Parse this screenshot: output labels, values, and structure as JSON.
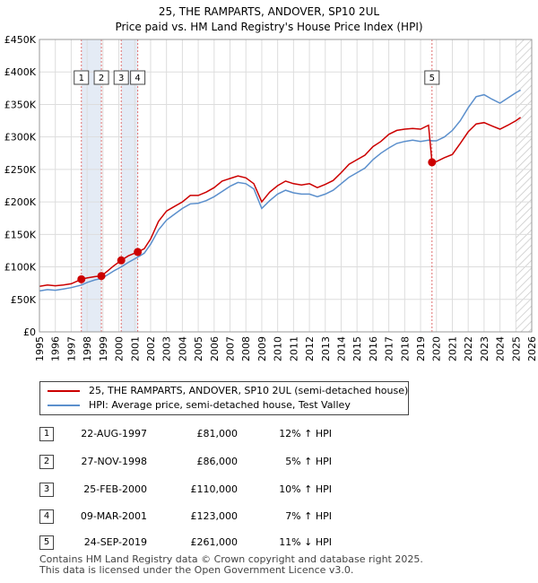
{
  "chart_data": {
    "type": "line",
    "title": "25, THE RAMPARTS, ANDOVER, SP10 2UL",
    "subtitle": "Price paid vs. HM Land Registry's House Price Index (HPI)",
    "xlim": [
      1995,
      2026
    ],
    "ylim": [
      0,
      450000
    ],
    "x_ticks": [
      "1995",
      "1996",
      "1997",
      "1998",
      "1999",
      "2000",
      "2001",
      "2002",
      "2003",
      "2004",
      "2005",
      "2006",
      "2007",
      "2008",
      "2009",
      "2010",
      "2011",
      "2012",
      "2013",
      "2014",
      "2015",
      "2016",
      "2017",
      "2018",
      "2019",
      "2020",
      "2021",
      "2022",
      "2023",
      "2024",
      "2025",
      "2026"
    ],
    "y_ticks": [
      {
        "value": 0,
        "label": "£0"
      },
      {
        "value": 50000,
        "label": "£50K"
      },
      {
        "value": 100000,
        "label": "£100K"
      },
      {
        "value": 150000,
        "label": "£150K"
      },
      {
        "value": 200000,
        "label": "£200K"
      },
      {
        "value": 250000,
        "label": "£250K"
      },
      {
        "value": 300000,
        "label": "£300K"
      },
      {
        "value": 350000,
        "label": "£350K"
      },
      {
        "value": 400000,
        "label": "£400K"
      },
      {
        "value": 450000,
        "label": "£450K"
      }
    ],
    "grid": true,
    "hatch_start": 2025.0,
    "series": [
      {
        "name": "25, THE RAMPARTS, ANDOVER, SP10 2UL (semi-detached house)",
        "color": "#cc0000",
        "points": [
          [
            1995.0,
            70000
          ],
          [
            1995.5,
            72000
          ],
          [
            1996.0,
            71000
          ],
          [
            1996.5,
            72000
          ],
          [
            1997.0,
            74000
          ],
          [
            1997.64,
            81000
          ],
          [
            1998.0,
            83000
          ],
          [
            1998.5,
            85000
          ],
          [
            1998.9,
            86000
          ],
          [
            1999.3,
            94000
          ],
          [
            1999.7,
            102000
          ],
          [
            2000.15,
            110000
          ],
          [
            2000.6,
            117000
          ],
          [
            2001.19,
            123000
          ],
          [
            2001.6,
            128000
          ],
          [
            2002.0,
            143000
          ],
          [
            2002.5,
            170000
          ],
          [
            2003.0,
            186000
          ],
          [
            2003.5,
            193000
          ],
          [
            2004.0,
            200000
          ],
          [
            2004.5,
            210000
          ],
          [
            2005.0,
            210000
          ],
          [
            2005.5,
            215000
          ],
          [
            2006.0,
            222000
          ],
          [
            2006.5,
            232000
          ],
          [
            2007.0,
            236000
          ],
          [
            2007.5,
            240000
          ],
          [
            2008.0,
            237000
          ],
          [
            2008.5,
            228000
          ],
          [
            2009.0,
            200000
          ],
          [
            2009.5,
            215000
          ],
          [
            2010.0,
            225000
          ],
          [
            2010.5,
            232000
          ],
          [
            2011.0,
            228000
          ],
          [
            2011.5,
            226000
          ],
          [
            2012.0,
            228000
          ],
          [
            2012.5,
            222000
          ],
          [
            2013.0,
            227000
          ],
          [
            2013.5,
            233000
          ],
          [
            2014.0,
            245000
          ],
          [
            2014.5,
            258000
          ],
          [
            2015.0,
            265000
          ],
          [
            2015.5,
            272000
          ],
          [
            2016.0,
            285000
          ],
          [
            2016.5,
            293000
          ],
          [
            2017.0,
            304000
          ],
          [
            2017.5,
            310000
          ],
          [
            2018.0,
            312000
          ],
          [
            2018.5,
            313000
          ],
          [
            2019.0,
            312000
          ],
          [
            2019.5,
            318000
          ],
          [
            2019.72,
            261000
          ],
          [
            2020.0,
            262000
          ],
          [
            2020.5,
            268000
          ],
          [
            2021.0,
            273000
          ],
          [
            2021.5,
            290000
          ],
          [
            2022.0,
            308000
          ],
          [
            2022.5,
            320000
          ],
          [
            2023.0,
            322000
          ],
          [
            2023.5,
            317000
          ],
          [
            2024.0,
            312000
          ],
          [
            2024.5,
            318000
          ],
          [
            2025.0,
            325000
          ],
          [
            2025.3,
            330000
          ]
        ]
      },
      {
        "name": "HPI: Average price, semi-detached house, Test Valley",
        "color": "#5b8fcc",
        "points": [
          [
            1995.0,
            63000
          ],
          [
            1995.5,
            65000
          ],
          [
            1996.0,
            64000
          ],
          [
            1996.5,
            66000
          ],
          [
            1997.0,
            68000
          ],
          [
            1997.64,
            72000
          ],
          [
            1998.0,
            76000
          ],
          [
            1998.5,
            80000
          ],
          [
            1998.9,
            82000
          ],
          [
            1999.3,
            88000
          ],
          [
            1999.7,
            94000
          ],
          [
            2000.15,
            100000
          ],
          [
            2000.6,
            107000
          ],
          [
            2001.19,
            115000
          ],
          [
            2001.6,
            121000
          ],
          [
            2002.0,
            135000
          ],
          [
            2002.5,
            157000
          ],
          [
            2003.0,
            172000
          ],
          [
            2003.5,
            181000
          ],
          [
            2004.0,
            190000
          ],
          [
            2004.5,
            197000
          ],
          [
            2005.0,
            198000
          ],
          [
            2005.5,
            202000
          ],
          [
            2006.0,
            208000
          ],
          [
            2006.5,
            216000
          ],
          [
            2007.0,
            224000
          ],
          [
            2007.5,
            230000
          ],
          [
            2008.0,
            228000
          ],
          [
            2008.5,
            220000
          ],
          [
            2009.0,
            190000
          ],
          [
            2009.5,
            202000
          ],
          [
            2010.0,
            212000
          ],
          [
            2010.5,
            218000
          ],
          [
            2011.0,
            214000
          ],
          [
            2011.5,
            212000
          ],
          [
            2012.0,
            212000
          ],
          [
            2012.5,
            208000
          ],
          [
            2013.0,
            212000
          ],
          [
            2013.5,
            218000
          ],
          [
            2014.0,
            228000
          ],
          [
            2014.5,
            238000
          ],
          [
            2015.0,
            245000
          ],
          [
            2015.5,
            252000
          ],
          [
            2016.0,
            265000
          ],
          [
            2016.5,
            275000
          ],
          [
            2017.0,
            283000
          ],
          [
            2017.5,
            290000
          ],
          [
            2018.0,
            293000
          ],
          [
            2018.5,
            295000
          ],
          [
            2019.0,
            293000
          ],
          [
            2019.5,
            295000
          ],
          [
            2019.72,
            294000
          ],
          [
            2020.0,
            294000
          ],
          [
            2020.5,
            300000
          ],
          [
            2021.0,
            310000
          ],
          [
            2021.5,
            325000
          ],
          [
            2022.0,
            345000
          ],
          [
            2022.5,
            362000
          ],
          [
            2023.0,
            365000
          ],
          [
            2023.5,
            358000
          ],
          [
            2024.0,
            352000
          ],
          [
            2024.5,
            360000
          ],
          [
            2025.0,
            368000
          ],
          [
            2025.3,
            372000
          ]
        ]
      }
    ],
    "sales": [
      {
        "num": "1",
        "x": 1997.64,
        "value": 81000
      },
      {
        "num": "2",
        "x": 1998.9,
        "value": 86000
      },
      {
        "num": "3",
        "x": 2000.15,
        "value": 110000
      },
      {
        "num": "4",
        "x": 2001.19,
        "value": 123000
      },
      {
        "num": "5",
        "x": 2019.72,
        "value": 261000
      }
    ],
    "shaded_spans": [
      [
        1997.64,
        1998.9
      ],
      [
        2000.15,
        2001.19
      ]
    ]
  },
  "legend": {
    "property_label": "25, THE RAMPARTS, ANDOVER, SP10 2UL (semi-detached house)",
    "hpi_label": "HPI: Average price, semi-detached house, Test Valley",
    "property_color": "#cc0000",
    "hpi_color": "#5b8fcc"
  },
  "transactions": [
    {
      "num": "1",
      "date": "22-AUG-1997",
      "price": "£81,000",
      "hpi": "12% ↑ HPI"
    },
    {
      "num": "2",
      "date": "27-NOV-1998",
      "price": "£86,000",
      "hpi": "5% ↑ HPI"
    },
    {
      "num": "3",
      "date": "25-FEB-2000",
      "price": "£110,000",
      "hpi": "10% ↑ HPI"
    },
    {
      "num": "4",
      "date": "09-MAR-2001",
      "price": "£123,000",
      "hpi": "7% ↑ HPI"
    },
    {
      "num": "5",
      "date": "24-SEP-2019",
      "price": "£261,000",
      "hpi": "11% ↓ HPI"
    }
  ],
  "footer": {
    "line1": "Contains HM Land Registry data © Crown copyright and database right 2025.",
    "line2": "This data is licensed under the Open Government Licence v3.0."
  }
}
